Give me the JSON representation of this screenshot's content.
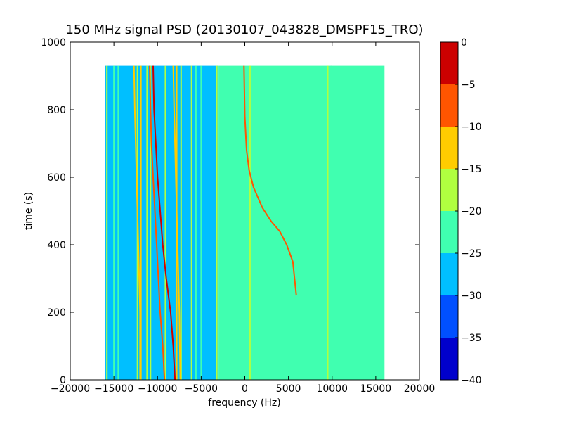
{
  "chart_data": {
    "type": "heatmap",
    "title": "150 MHz signal PSD (20130107_043828_DMSPF15_TRO)",
    "xlabel": "frequency (Hz)",
    "ylabel": "time (s)",
    "xlim": [
      -20000,
      20000
    ],
    "ylim": [
      0,
      1000
    ],
    "x_ticks": [
      -20000,
      -15000,
      -10000,
      -5000,
      0,
      5000,
      10000,
      15000,
      20000
    ],
    "y_ticks": [
      0,
      200,
      400,
      600,
      800,
      1000
    ],
    "data_extent": {
      "x": [
        -16000,
        16000
      ],
      "y": [
        0,
        930
      ]
    },
    "colorbar": {
      "range": [
        -40,
        0
      ],
      "levels": [
        -40,
        -35,
        -30,
        -25,
        -20,
        -15,
        -10,
        -5,
        0
      ],
      "colors": [
        "#0000cc",
        "#0050ff",
        "#00bfff",
        "#40ffb0",
        "#b0ff40",
        "#ffcc00",
        "#ff5500",
        "#cc0000"
      ]
    },
    "background_levels": [
      {
        "x": [
          -16000,
          -3000
        ],
        "color": "#00bfff"
      },
      {
        "x": [
          -3000,
          16000
        ],
        "color": "#40ffb0"
      }
    ],
    "vertical_lines": [
      {
        "x": -15800,
        "color": "#b0ff40"
      },
      {
        "x": -15000,
        "color": "#40ffb0"
      },
      {
        "x": -14500,
        "color": "#40ffb0"
      },
      {
        "x": -12300,
        "color": "#b0ff40"
      },
      {
        "x": -11900,
        "color": "#ffcc00"
      },
      {
        "x": -11200,
        "color": "#b0ff40"
      },
      {
        "x": -10800,
        "color": "#b0ff40"
      },
      {
        "x": -9100,
        "color": "#b0ff40"
      },
      {
        "x": -7800,
        "color": "#ffcc00"
      },
      {
        "x": -7300,
        "color": "#b0ff40"
      },
      {
        "x": -6100,
        "color": "#b0ff40"
      },
      {
        "x": -5600,
        "color": "#40ffb0"
      },
      {
        "x": -5000,
        "color": "#40ffb0"
      },
      {
        "x": -3200,
        "color": "#b0ff40"
      },
      {
        "x": 600,
        "color": "#b0ff40"
      },
      {
        "x": 9500,
        "color": "#b0ff40"
      },
      {
        "x": 9900,
        "color": "#40ffb0"
      }
    ],
    "tracks": [
      {
        "color": "#cc0000",
        "points": [
          [
            -8000,
            0
          ],
          [
            -8200,
            100
          ],
          [
            -8500,
            200
          ],
          [
            -9000,
            300
          ],
          [
            -9400,
            400
          ],
          [
            -9700,
            500
          ],
          [
            -10000,
            600
          ],
          [
            -10200,
            700
          ],
          [
            -10400,
            800
          ],
          [
            -10500,
            930
          ]
        ]
      },
      {
        "color": "#ff5500",
        "points": [
          [
            -9200,
            0
          ],
          [
            -9400,
            100
          ],
          [
            -9700,
            200
          ],
          [
            -9900,
            300
          ],
          [
            -10100,
            400
          ],
          [
            -10300,
            500
          ],
          [
            -10500,
            600
          ],
          [
            -10700,
            700
          ],
          [
            -10800,
            800
          ],
          [
            -10900,
            930
          ]
        ]
      },
      {
        "color": "#ffcc00",
        "points": [
          [
            -7400,
            0
          ],
          [
            -7500,
            200
          ],
          [
            -7700,
            400
          ],
          [
            -7900,
            600
          ],
          [
            -8100,
            800
          ],
          [
            -8200,
            930
          ]
        ]
      },
      {
        "color": "#ffcc00",
        "points": [
          [
            -12000,
            0
          ],
          [
            -12000,
            200
          ],
          [
            -12200,
            400
          ],
          [
            -12400,
            600
          ],
          [
            -12600,
            800
          ],
          [
            -12700,
            930
          ]
        ]
      },
      {
        "color": "#ff5500",
        "points": [
          [
            5900,
            250
          ],
          [
            5500,
            350
          ],
          [
            4800,
            400
          ],
          [
            4000,
            440
          ],
          [
            3000,
            470
          ],
          [
            2000,
            510
          ],
          [
            1000,
            570
          ],
          [
            500,
            620
          ],
          [
            200,
            680
          ],
          [
            0,
            780
          ],
          [
            -100,
            930
          ]
        ]
      }
    ]
  }
}
